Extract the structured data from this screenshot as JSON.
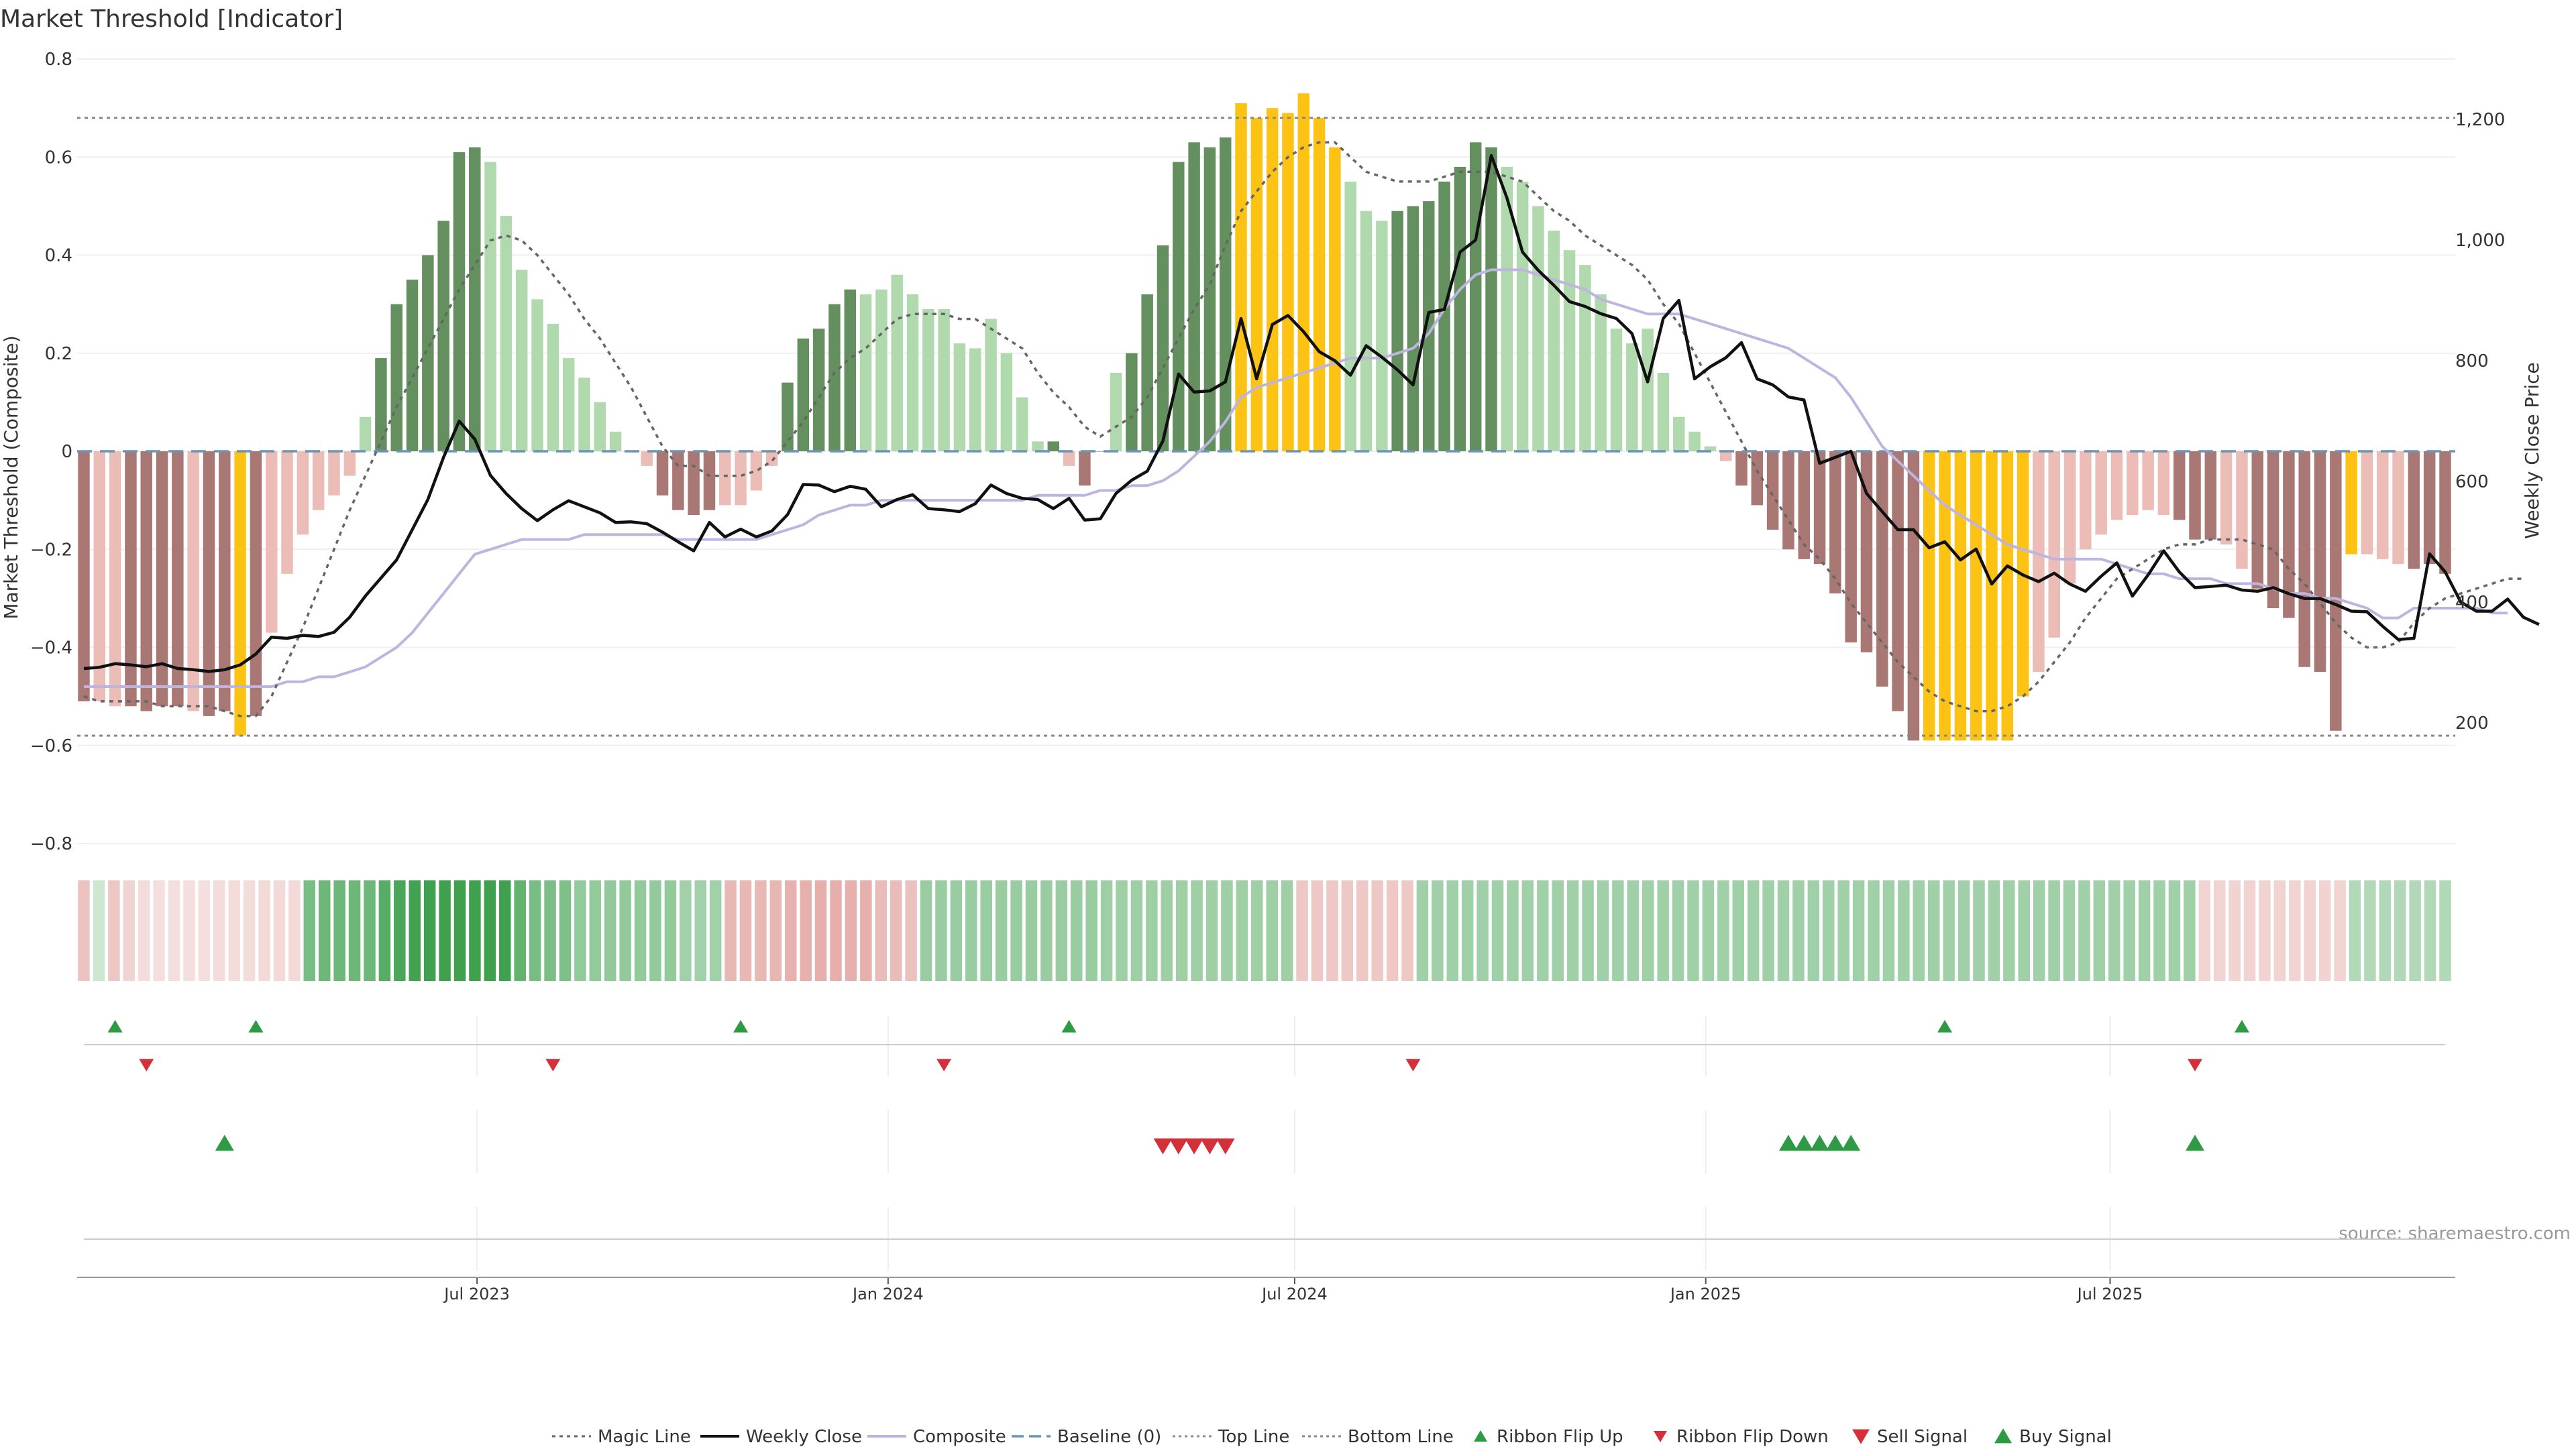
{
  "title": "Market Threshold [Indicator]",
  "source": "source: sharemaestro.com",
  "colors": {
    "background": "#ffffff",
    "bar_dark_green": "#64905f",
    "bar_light_green": "#b1d9ae",
    "bar_dark_red": "#a97774",
    "bar_light_red": "#ecbcb7",
    "bar_signal": "#fcc314",
    "weekly_close": "#111111",
    "composite": "#bdb5e0",
    "magic_line": "#666666",
    "baseline": "#6a94b8",
    "top_bottom_line": "#888888",
    "ribbon_green": "#3fa14e",
    "ribbon_red": "#d98883",
    "flip_up": "#2e9a44",
    "flip_down": "#d3303a"
  },
  "chart_data": {
    "type": "bar",
    "x_type": "weekly-date",
    "start_date": "2023-01-06",
    "interval_days": 7,
    "x_ticks": [
      "2023-07-01",
      "2024-01-01",
      "2024-07-01",
      "2025-01-01",
      "2025-07-01"
    ],
    "x_tick_labels": [
      "Jul 2023",
      "Jan 2024",
      "Jul 2024",
      "Jan 2025",
      "Jul 2025"
    ],
    "ylabel": "Market Threshold (Composite)",
    "ylim": [
      -0.8,
      0.8
    ],
    "yticks": [
      0.8,
      0.6,
      0.4,
      0.2,
      0,
      -0.2,
      -0.4,
      -0.6,
      -0.8
    ],
    "ytick_labels": [
      "0.8",
      "0.6",
      "0.4",
      "0.2",
      "0",
      "−0.2",
      "−0.4",
      "−0.6",
      "−0.8"
    ],
    "y2label": "Weekly Close Price",
    "y2lim": [
      0,
      1300
    ],
    "y2ticks": [
      200,
      400,
      600,
      800,
      1000,
      1200
    ],
    "y2tick_labels": [
      "200",
      "400",
      "600",
      "800",
      "1,000",
      "1,200"
    ],
    "top_line": 0.68,
    "bottom_line": -0.58,
    "baseline": 0,
    "grid": true,
    "legend_position": "bottom",
    "legend": [
      "Magic Line",
      "Weekly Close",
      "Composite",
      "Baseline (0)",
      "Top Line",
      "Bottom Line",
      "Ribbon Flip Up",
      "Ribbon Flip Down",
      "Sell Signal",
      "Buy Signal"
    ],
    "bars": [
      -0.51,
      -0.51,
      -0.52,
      -0.52,
      -0.53,
      -0.52,
      -0.52,
      -0.53,
      -0.54,
      -0.53,
      -0.58,
      -0.54,
      -0.37,
      -0.25,
      -0.17,
      -0.12,
      -0.09,
      -0.05,
      0.07,
      0.19,
      0.3,
      0.35,
      0.4,
      0.47,
      0.61,
      0.62,
      0.59,
      0.48,
      0.37,
      0.31,
      0.26,
      0.19,
      0.15,
      0.1,
      0.04,
      0.0,
      -0.03,
      -0.09,
      -0.12,
      -0.13,
      -0.12,
      -0.11,
      -0.11,
      -0.08,
      -0.03,
      0.14,
      0.23,
      0.25,
      0.3,
      0.33,
      0.32,
      0.33,
      0.36,
      0.32,
      0.29,
      0.29,
      0.22,
      0.21,
      0.27,
      0.2,
      0.11,
      0.02,
      0.02,
      -0.03,
      -0.07,
      0.0,
      0.16,
      0.2,
      0.32,
      0.42,
      0.59,
      0.63,
      0.62,
      0.64,
      0.71,
      0.68,
      0.7,
      0.69,
      0.73,
      0.68,
      0.62,
      0.55,
      0.49,
      0.47,
      0.49,
      0.5,
      0.51,
      0.55,
      0.58,
      0.63,
      0.62,
      0.58,
      0.55,
      0.5,
      0.45,
      0.41,
      0.38,
      0.32,
      0.25,
      0.22,
      0.25,
      0.16,
      0.07,
      0.04,
      0.01,
      -0.02,
      -0.07,
      -0.11,
      -0.16,
      -0.2,
      -0.22,
      -0.23,
      -0.29,
      -0.39,
      -0.41,
      -0.48,
      -0.53,
      -0.59,
      -0.59,
      -0.59,
      -0.59,
      -0.59,
      -0.59,
      -0.59,
      -0.5,
      -0.45,
      -0.38,
      -0.27,
      -0.2,
      -0.17,
      -0.14,
      -0.13,
      -0.12,
      -0.13,
      -0.14,
      -0.18,
      -0.18,
      -0.19,
      -0.24,
      -0.28,
      -0.32,
      -0.34,
      -0.44,
      -0.45,
      -0.57,
      -0.21,
      -0.21,
      -0.22,
      -0.23,
      -0.24,
      -0.23,
      -0.25
    ],
    "bar_styles": [
      "R",
      "r",
      "r",
      "R",
      "R",
      "R",
      "R",
      "r",
      "R",
      "R",
      "Y",
      "R",
      "r",
      "r",
      "r",
      "r",
      "r",
      "r",
      "g",
      "G",
      "G",
      "G",
      "G",
      "G",
      "G",
      "G",
      "g",
      "g",
      "g",
      "g",
      "g",
      "g",
      "g",
      "g",
      "g",
      "g",
      "r",
      "R",
      "R",
      "R",
      "R",
      "r",
      "r",
      "r",
      "r",
      "G",
      "G",
      "G",
      "G",
      "G",
      "g",
      "g",
      "g",
      "g",
      "g",
      "g",
      "g",
      "g",
      "g",
      "g",
      "g",
      "g",
      "G",
      "r",
      "R",
      "G",
      "g",
      "G",
      "G",
      "G",
      "G",
      "G",
      "G",
      "G",
      "Y",
      "Y",
      "Y",
      "Y",
      "Y",
      "Y",
      "Y",
      "g",
      "g",
      "g",
      "G",
      "G",
      "G",
      "G",
      "G",
      "G",
      "G",
      "g",
      "g",
      "g",
      "g",
      "g",
      "g",
      "g",
      "g",
      "g",
      "g",
      "g",
      "g",
      "g",
      "g",
      "r",
      "R",
      "R",
      "R",
      "R",
      "R",
      "R",
      "R",
      "R",
      "R",
      "R",
      "R",
      "R",
      "Y",
      "Y",
      "Y",
      "Y",
      "Y",
      "Y",
      "Y",
      "r",
      "r",
      "r",
      "r",
      "r",
      "r",
      "r",
      "r",
      "r",
      "R",
      "R",
      "R",
      "r",
      "r",
      "R",
      "R",
      "R",
      "R",
      "R",
      "R",
      "Y",
      "r",
      "r",
      "r",
      "R",
      "R",
      "R",
      "R"
    ],
    "weekly_close": [
      290,
      292,
      298,
      296,
      293,
      298,
      290,
      288,
      285,
      288,
      296,
      314,
      342,
      340,
      345,
      343,
      350,
      375,
      410,
      440,
      470,
      520,
      570,
      640,
      700,
      670,
      610,
      580,
      555,
      535,
      553,
      568,
      558,
      548,
      532,
      533,
      530,
      516,
      500,
      485,
      532,
      508,
      521,
      508,
      518,
      545,
      595,
      594,
      583,
      592,
      587,
      558,
      570,
      578,
      555,
      553,
      550,
      563,
      594,
      580,
      572,
      570,
      555,
      572,
      536,
      538,
      580,
      602,
      617,
      667,
      778,
      748,
      750,
      765,
      870,
      770,
      860,
      875,
      848,
      815,
      800,
      776,
      825,
      806,
      785,
      760,
      880,
      885,
      980,
      1000,
      1140,
      1070,
      980,
      950,
      925,
      898,
      890,
      878,
      870,
      845,
      765,
      870,
      900,
      770,
      790,
      805,
      830,
      770,
      760,
      740,
      735,
      630,
      640,
      650,
      580,
      550,
      520,
      520,
      490,
      500,
      470,
      488,
      430,
      460,
      445,
      434,
      448,
      430,
      418,
      443,
      465,
      410,
      445,
      485,
      450,
      424,
      426,
      428,
      420,
      418,
      424,
      414,
      406,
      406,
      396,
      385,
      384,
      360,
      338,
      340,
      480,
      450,
      400,
      385,
      385,
      405,
      375,
      363
    ],
    "composite": [
      -0.48,
      -0.48,
      -0.48,
      -0.48,
      -0.48,
      -0.48,
      -0.48,
      -0.48,
      -0.48,
      -0.48,
      -0.48,
      -0.48,
      -0.48,
      -0.47,
      -0.47,
      -0.46,
      -0.46,
      -0.45,
      -0.44,
      -0.42,
      -0.4,
      -0.37,
      -0.33,
      -0.29,
      -0.25,
      -0.21,
      -0.2,
      -0.19,
      -0.18,
      -0.18,
      -0.18,
      -0.18,
      -0.17,
      -0.17,
      -0.17,
      -0.17,
      -0.17,
      -0.17,
      -0.18,
      -0.18,
      -0.18,
      -0.18,
      -0.18,
      -0.18,
      -0.17,
      -0.16,
      -0.15,
      -0.13,
      -0.12,
      -0.11,
      -0.11,
      -0.1,
      -0.1,
      -0.1,
      -0.1,
      -0.1,
      -0.1,
      -0.1,
      -0.1,
      -0.1,
      -0.1,
      -0.09,
      -0.09,
      -0.09,
      -0.09,
      -0.08,
      -0.08,
      -0.07,
      -0.07,
      -0.06,
      -0.04,
      -0.01,
      0.02,
      0.06,
      0.11,
      0.13,
      0.14,
      0.15,
      0.16,
      0.17,
      0.18,
      0.19,
      0.19,
      0.19,
      0.2,
      0.21,
      0.24,
      0.29,
      0.33,
      0.36,
      0.37,
      0.37,
      0.37,
      0.36,
      0.35,
      0.34,
      0.33,
      0.31,
      0.3,
      0.29,
      0.28,
      0.28,
      0.28,
      0.27,
      0.26,
      0.25,
      0.24,
      0.23,
      0.22,
      0.21,
      0.19,
      0.17,
      0.15,
      0.11,
      0.06,
      0.01,
      -0.02,
      -0.05,
      -0.08,
      -0.11,
      -0.13,
      -0.15,
      -0.17,
      -0.19,
      -0.2,
      -0.21,
      -0.22,
      -0.22,
      -0.22,
      -0.22,
      -0.23,
      -0.24,
      -0.25,
      -0.25,
      -0.26,
      -0.26,
      -0.26,
      -0.27,
      -0.27,
      -0.27,
      -0.28,
      -0.29,
      -0.29,
      -0.3,
      -0.3,
      -0.31,
      -0.32,
      -0.34,
      -0.34,
      -0.32,
      -0.32,
      -0.32,
      -0.32,
      -0.32,
      -0.33,
      -0.33
    ],
    "magic_line": [
      -0.5,
      -0.51,
      -0.51,
      -0.51,
      -0.51,
      -0.52,
      -0.52,
      -0.52,
      -0.52,
      -0.53,
      -0.54,
      -0.54,
      -0.5,
      -0.43,
      -0.36,
      -0.28,
      -0.2,
      -0.12,
      -0.05,
      0.02,
      0.09,
      0.15,
      0.21,
      0.27,
      0.33,
      0.38,
      0.43,
      0.44,
      0.43,
      0.4,
      0.36,
      0.32,
      0.27,
      0.23,
      0.18,
      0.13,
      0.07,
      0.01,
      -0.03,
      -0.03,
      -0.05,
      -0.05,
      -0.05,
      -0.04,
      -0.02,
      0.02,
      0.06,
      0.11,
      0.16,
      0.19,
      0.21,
      0.24,
      0.27,
      0.28,
      0.28,
      0.28,
      0.27,
      0.27,
      0.25,
      0.23,
      0.21,
      0.16,
      0.12,
      0.09,
      0.05,
      0.03,
      0.05,
      0.07,
      0.11,
      0.17,
      0.23,
      0.29,
      0.34,
      0.42,
      0.49,
      0.53,
      0.57,
      0.6,
      0.62,
      0.63,
      0.63,
      0.6,
      0.57,
      0.56,
      0.55,
      0.55,
      0.55,
      0.56,
      0.57,
      0.57,
      0.57,
      0.56,
      0.55,
      0.52,
      0.49,
      0.47,
      0.44,
      0.42,
      0.4,
      0.38,
      0.35,
      0.3,
      0.26,
      0.2,
      0.14,
      0.08,
      0.02,
      -0.04,
      -0.09,
      -0.14,
      -0.19,
      -0.22,
      -0.26,
      -0.31,
      -0.35,
      -0.39,
      -0.43,
      -0.46,
      -0.49,
      -0.51,
      -0.52,
      -0.53,
      -0.53,
      -0.52,
      -0.5,
      -0.47,
      -0.43,
      -0.39,
      -0.34,
      -0.3,
      -0.26,
      -0.24,
      -0.22,
      -0.2,
      -0.19,
      -0.19,
      -0.18,
      -0.18,
      -0.18,
      -0.19,
      -0.2,
      -0.24,
      -0.27,
      -0.31,
      -0.35,
      -0.38,
      -0.4,
      -0.4,
      -0.39,
      -0.35,
      -0.32,
      -0.3,
      -0.29,
      -0.28,
      -0.27,
      -0.26,
      -0.26
    ],
    "ribbon_levels": [
      -0.42,
      0.13,
      -0.38,
      -0.25,
      -0.17,
      -0.14,
      -0.14,
      -0.14,
      -0.14,
      -0.17,
      -0.17,
      -0.17,
      -0.19,
      -0.19,
      -0.19,
      0.65,
      0.72,
      0.72,
      0.72,
      0.72,
      0.85,
      0.93,
      0.99,
      1.0,
      1.0,
      1.0,
      1.0,
      1.0,
      1.0,
      0.78,
      0.65,
      0.63,
      0.61,
      0.49,
      0.49,
      0.49,
      0.49,
      0.49,
      0.49,
      0.49,
      0.4,
      0.4,
      0.4,
      -0.53,
      -0.53,
      -0.53,
      -0.54,
      -0.59,
      -0.6,
      -0.61,
      -0.61,
      -0.6,
      -0.6,
      -0.49,
      -0.49,
      -0.43,
      0.45,
      0.45,
      0.45,
      0.45,
      0.45,
      0.45,
      0.45,
      0.45,
      0.45,
      0.45,
      0.45,
      0.45,
      0.42,
      0.42,
      0.42,
      0.42,
      0.42,
      0.42,
      0.42,
      0.42,
      0.42,
      0.42,
      0.42,
      0.42,
      0.42,
      -0.37,
      -0.37,
      -0.37,
      -0.37,
      -0.37,
      -0.37,
      -0.37,
      -0.37,
      0.41,
      0.41,
      0.41,
      0.41,
      0.41,
      0.41,
      0.41,
      0.41,
      0.41,
      0.41,
      0.41,
      0.41,
      0.41,
      0.41,
      0.41,
      0.41,
      0.41,
      0.41,
      0.41,
      0.41,
      0.41,
      0.41,
      0.41,
      0.41,
      0.41,
      0.41,
      0.41,
      0.41,
      0.41,
      0.41,
      0.41,
      0.41,
      0.41,
      0.41,
      0.41,
      0.41,
      0.41,
      0.41,
      0.41,
      0.41,
      0.41,
      0.41,
      0.41,
      0.41,
      0.41,
      0.41,
      0.41,
      0.41,
      0.41,
      0.41,
      0.41,
      0.41,
      -0.25,
      -0.25,
      -0.25,
      -0.25,
      -0.25,
      -0.25,
      -0.25,
      -0.25,
      -0.25,
      -0.25,
      0.3,
      0.3,
      0.3,
      0.3,
      0.3,
      0.3,
      0.3
    ],
    "ribbon_flip_up": [
      2,
      11,
      42,
      63,
      119,
      138
    ],
    "ribbon_flip_down": [
      4,
      30,
      55,
      85,
      135
    ],
    "sell_signals": [
      69,
      70,
      71,
      72,
      73
    ],
    "buy_signals": [
      9,
      109,
      110,
      111,
      112,
      113,
      135
    ]
  }
}
